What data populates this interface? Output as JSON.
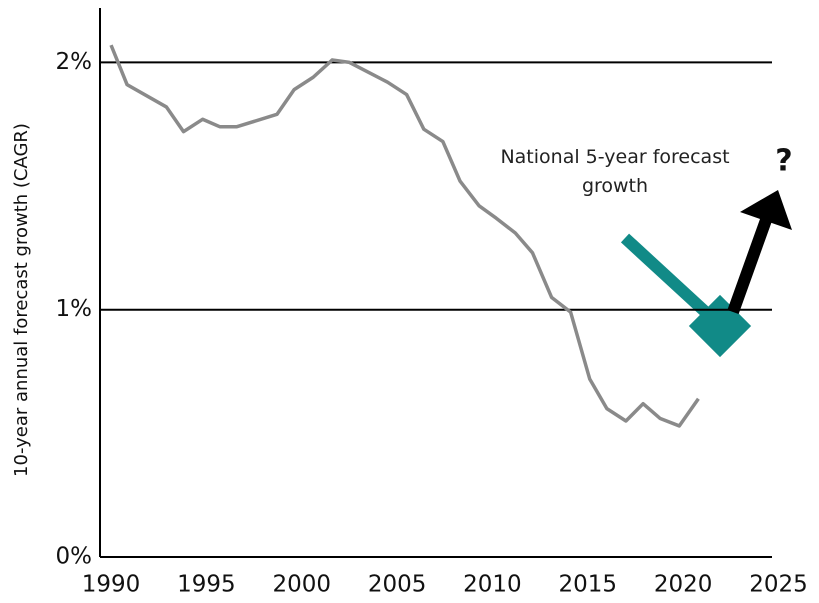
{
  "chart_data": {
    "type": "line",
    "ylabel": "10-year annual forecast growth (CAGR)",
    "annotation": "National 5-year forecast growth",
    "annotation_mark": "?",
    "x": [
      1990.0,
      1990.84,
      1992.9,
      1993.8,
      1994.8,
      1995.7,
      1996.6,
      1998.7,
      1999.6,
      2000.6,
      2001.6,
      2002.5,
      2003.5,
      2004.5,
      2005.5,
      2006.4,
      2007.4,
      2008.3,
      2009.3,
      2010.2,
      2011.2,
      2012.1,
      2013.1,
      2014.1,
      2015.1,
      2016.0,
      2017.0,
      2017.9,
      2018.8,
      2019.8,
      2020.8
    ],
    "series": [
      {
        "color": "#8a8a8a",
        "values": [
          2.07,
          1.91,
          1.82,
          1.72,
          1.77,
          1.74,
          1.74,
          1.79,
          1.89,
          1.94,
          2.01,
          2.0,
          1.96,
          1.92,
          1.87,
          1.73,
          1.68,
          1.52,
          1.42,
          1.37,
          1.31,
          1.23,
          1.05,
          0.99,
          0.72,
          0.6,
          0.55,
          0.62,
          0.56,
          0.53,
          0.64
        ]
      }
    ],
    "xlim": [
      1989.42,
      2024.66
    ],
    "xticks": [
      1990,
      1995,
      2000,
      2005,
      2010,
      2015,
      2020,
      2025
    ],
    "ylim": [
      0,
      2.22
    ],
    "yticks": [
      {
        "value": 0,
        "label": "0%"
      },
      {
        "value": 1,
        "label": "1%"
      },
      {
        "value": 2,
        "label": "2%"
      }
    ],
    "grid": true
  }
}
